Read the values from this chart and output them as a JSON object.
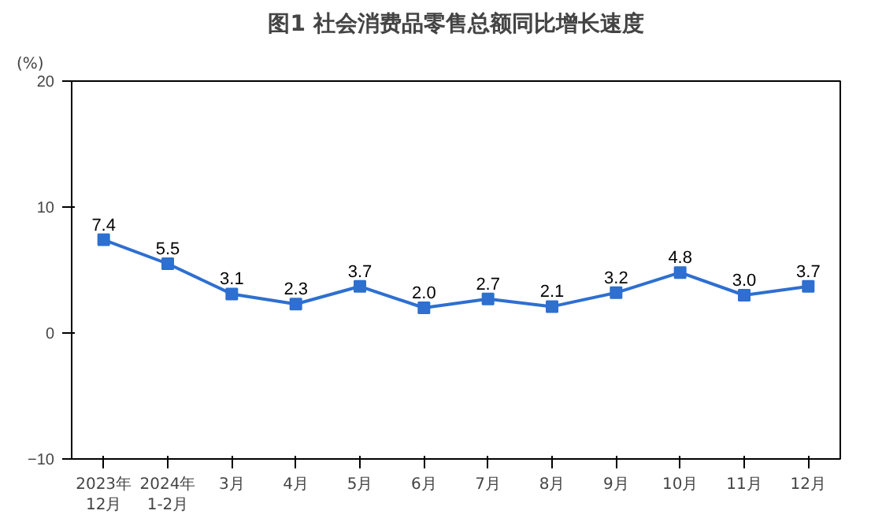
{
  "chart_data": {
    "type": "line",
    "title": "图1 社会消费品零售总额同比增长速度",
    "ylabel": "(%)",
    "categories": [
      "2023年\n12月",
      "2024年\n1-2月",
      "3月",
      "4月",
      "5月",
      "6月",
      "7月",
      "8月",
      "9月",
      "10月",
      "11月",
      "12月"
    ],
    "series": [
      {
        "color": "#2e6fd0",
        "values": [
          7.4,
          5.5,
          3.1,
          2.3,
          3.7,
          2.0,
          2.7,
          2.1,
          3.2,
          4.8,
          3.0,
          3.7
        ],
        "value_labels": [
          "7.4",
          "5.5",
          "3.1",
          "2.3",
          "3.7",
          "2.0",
          "2.7",
          "2.1",
          "3.2",
          "4.8",
          "3.0",
          "3.7"
        ]
      }
    ],
    "ylim": [
      -10,
      20
    ],
    "yticks": [
      -10,
      0,
      10,
      20
    ],
    "marker": "square",
    "line_style": "solid",
    "grid": false
  }
}
